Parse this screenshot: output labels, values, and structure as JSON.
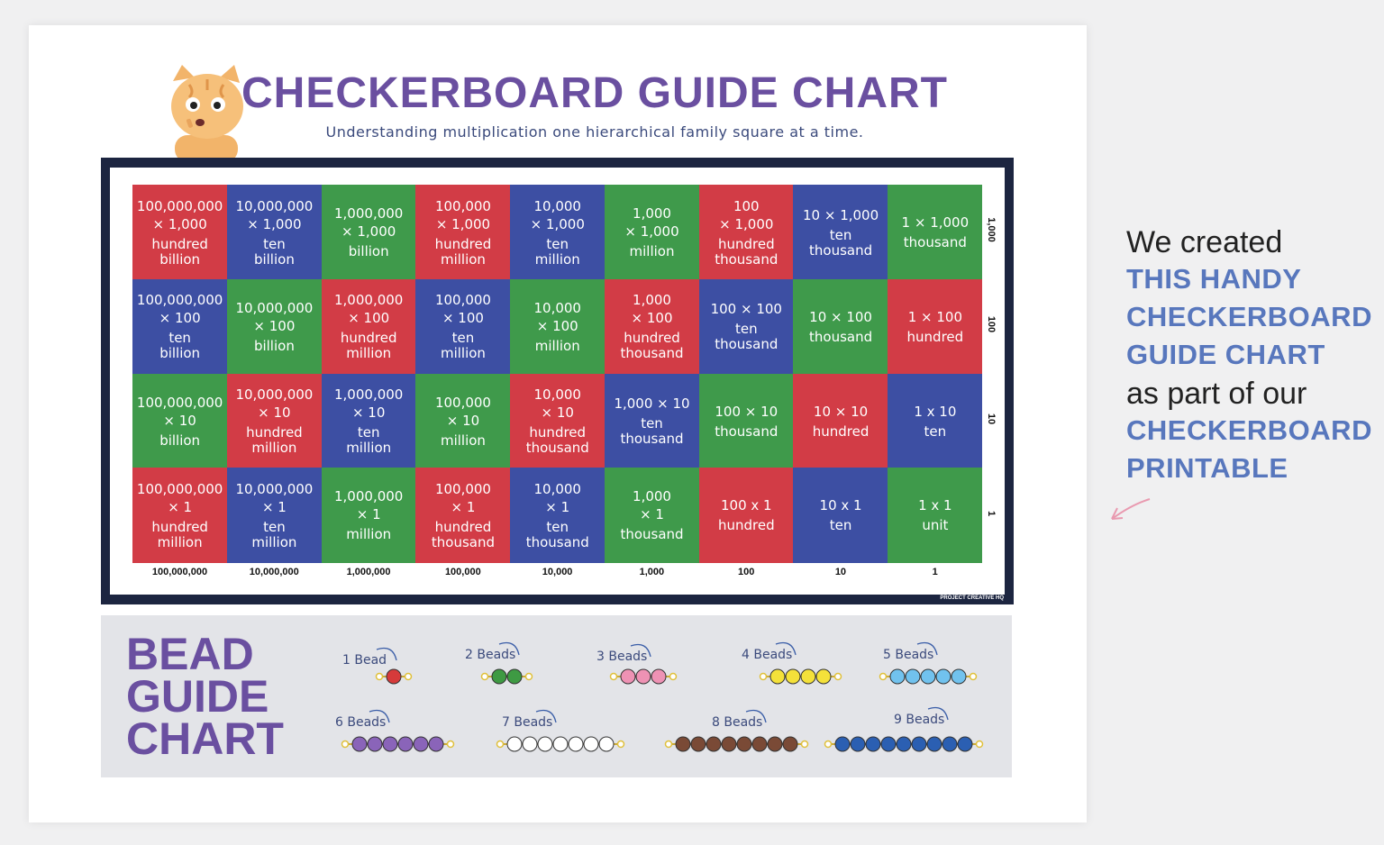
{
  "header": {
    "title": "CHECKERBOARD GUIDE CHART",
    "subtitle": "Understanding multiplication one hierarchical family square at a time."
  },
  "board": {
    "rows": [
      [
        {
          "top": [
            "100,000,000",
            "× 1,000"
          ],
          "name": [
            "hundred",
            "billion"
          ],
          "color": "#d23c46"
        },
        {
          "top": [
            "10,000,000",
            "× 1,000"
          ],
          "name": [
            "ten",
            "billion"
          ],
          "color": "#3d4fa3"
        },
        {
          "top": [
            "1,000,000",
            "× 1,000"
          ],
          "name": [
            "billion"
          ],
          "color": "#3f9a4b"
        },
        {
          "top": [
            "100,000",
            "× 1,000"
          ],
          "name": [
            "hundred",
            "million"
          ],
          "color": "#d23c46"
        },
        {
          "top": [
            "10,000",
            "× 1,000"
          ],
          "name": [
            "ten",
            "million"
          ],
          "color": "#3d4fa3"
        },
        {
          "top": [
            "1,000",
            "× 1,000"
          ],
          "name": [
            "million"
          ],
          "color": "#3f9a4b"
        },
        {
          "top": [
            "100",
            "× 1,000"
          ],
          "name": [
            "hundred",
            "thousand"
          ],
          "color": "#d23c46"
        },
        {
          "top": [
            "10 × 1,000"
          ],
          "name": [
            "ten",
            "thousand"
          ],
          "color": "#3d4fa3"
        },
        {
          "top": [
            "1 × 1,000"
          ],
          "name": [
            "thousand"
          ],
          "color": "#3f9a4b"
        }
      ],
      [
        {
          "top": [
            "100,000,000",
            "× 100"
          ],
          "name": [
            "ten",
            "billion"
          ],
          "color": "#3d4fa3"
        },
        {
          "top": [
            "10,000,000",
            "× 100"
          ],
          "name": [
            "billion"
          ],
          "color": "#3f9a4b"
        },
        {
          "top": [
            "1,000,000",
            "× 100"
          ],
          "name": [
            "hundred",
            "million"
          ],
          "color": "#d23c46"
        },
        {
          "top": [
            "100,000",
            "× 100"
          ],
          "name": [
            "ten",
            "million"
          ],
          "color": "#3d4fa3"
        },
        {
          "top": [
            "10,000",
            "× 100"
          ],
          "name": [
            "million"
          ],
          "color": "#3f9a4b"
        },
        {
          "top": [
            "1,000",
            "× 100"
          ],
          "name": [
            "hundred",
            "thousand"
          ],
          "color": "#d23c46"
        },
        {
          "top": [
            "100 × 100"
          ],
          "name": [
            "ten",
            "thousand"
          ],
          "color": "#3d4fa3"
        },
        {
          "top": [
            "10 × 100"
          ],
          "name": [
            "thousand"
          ],
          "color": "#3f9a4b"
        },
        {
          "top": [
            "1 × 100"
          ],
          "name": [
            "hundred"
          ],
          "color": "#d23c46"
        }
      ],
      [
        {
          "top": [
            "100,000,000",
            "× 10"
          ],
          "name": [
            "billion"
          ],
          "color": "#3f9a4b"
        },
        {
          "top": [
            "10,000,000",
            "× 10"
          ],
          "name": [
            "hundred",
            "million"
          ],
          "color": "#d23c46"
        },
        {
          "top": [
            "1,000,000",
            "× 10"
          ],
          "name": [
            "ten",
            "million"
          ],
          "color": "#3d4fa3"
        },
        {
          "top": [
            "100,000",
            "× 10"
          ],
          "name": [
            "million"
          ],
          "color": "#3f9a4b"
        },
        {
          "top": [
            "10,000",
            "× 10"
          ],
          "name": [
            "hundred",
            "thousand"
          ],
          "color": "#d23c46"
        },
        {
          "top": [
            "1,000 × 10"
          ],
          "name": [
            "ten",
            "thousand"
          ],
          "color": "#3d4fa3"
        },
        {
          "top": [
            "100 × 10"
          ],
          "name": [
            "thousand"
          ],
          "color": "#3f9a4b"
        },
        {
          "top": [
            "10 × 10"
          ],
          "name": [
            "hundred"
          ],
          "color": "#d23c46"
        },
        {
          "top": [
            "1 x 10"
          ],
          "name": [
            "ten"
          ],
          "color": "#3d4fa3"
        }
      ],
      [
        {
          "top": [
            "100,000,000",
            "× 1"
          ],
          "name": [
            "hundred",
            "million"
          ],
          "color": "#d23c46"
        },
        {
          "top": [
            "10,000,000",
            "× 1"
          ],
          "name": [
            "ten",
            "million"
          ],
          "color": "#3d4fa3"
        },
        {
          "top": [
            "1,000,000",
            "× 1"
          ],
          "name": [
            "million"
          ],
          "color": "#3f9a4b"
        },
        {
          "top": [
            "100,000",
            "× 1"
          ],
          "name": [
            "hundred",
            "thousand"
          ],
          "color": "#d23c46"
        },
        {
          "top": [
            "10,000",
            "× 1"
          ],
          "name": [
            "ten",
            "thousand"
          ],
          "color": "#3d4fa3"
        },
        {
          "top": [
            "1,000",
            "× 1"
          ],
          "name": [
            "thousand"
          ],
          "color": "#3f9a4b"
        },
        {
          "top": [
            "100 x 1"
          ],
          "name": [
            "hundred"
          ],
          "color": "#d23c46"
        },
        {
          "top": [
            "10 x 1"
          ],
          "name": [
            "ten"
          ],
          "color": "#3d4fa3"
        },
        {
          "top": [
            "1 x 1"
          ],
          "name": [
            "unit"
          ],
          "color": "#3f9a4b"
        }
      ]
    ],
    "row_labels": [
      "1,000",
      "100",
      "10",
      "1"
    ],
    "column_labels": [
      "100,000,000",
      "10,000,000",
      "1,000,000",
      "100,000",
      "10,000",
      "1,000",
      "100",
      "10",
      "1"
    ],
    "brand": "PROJECT CREATIVE HQ"
  },
  "beads": {
    "title": [
      "BEAD",
      "GUIDE",
      "CHART"
    ],
    "items": [
      {
        "label": "1 Bead",
        "count": 1,
        "color": "#d63a3a"
      },
      {
        "label": "2 Beads",
        "count": 2,
        "color": "#3e9a43"
      },
      {
        "label": "3 Beads",
        "count": 3,
        "color": "#ee92b4"
      },
      {
        "label": "4 Beads",
        "count": 4,
        "color": "#f4e13a"
      },
      {
        "label": "5 Beads",
        "count": 5,
        "color": "#71c2ee"
      },
      {
        "label": "6 Beads",
        "count": 6,
        "color": "#8a64b9"
      },
      {
        "label": "7 Beads",
        "count": 7,
        "color": "#ffffff"
      },
      {
        "label": "8 Beads",
        "count": 8,
        "color": "#7a4a36"
      },
      {
        "label": "9 Beads",
        "count": 9,
        "color": "#2b5fb2"
      }
    ]
  },
  "side_note": [
    {
      "text": "We created",
      "emphasis": false
    },
    {
      "text": "THIS HANDY",
      "emphasis": true
    },
    {
      "text": "CHECKERBOARD",
      "emphasis": true
    },
    {
      "text": "GUIDE CHART",
      "emphasis": true
    },
    {
      "text": "as part of our",
      "emphasis": false
    },
    {
      "text": "CHECKERBOARD",
      "emphasis": true
    },
    {
      "text": "PRINTABLE",
      "emphasis": true
    }
  ]
}
